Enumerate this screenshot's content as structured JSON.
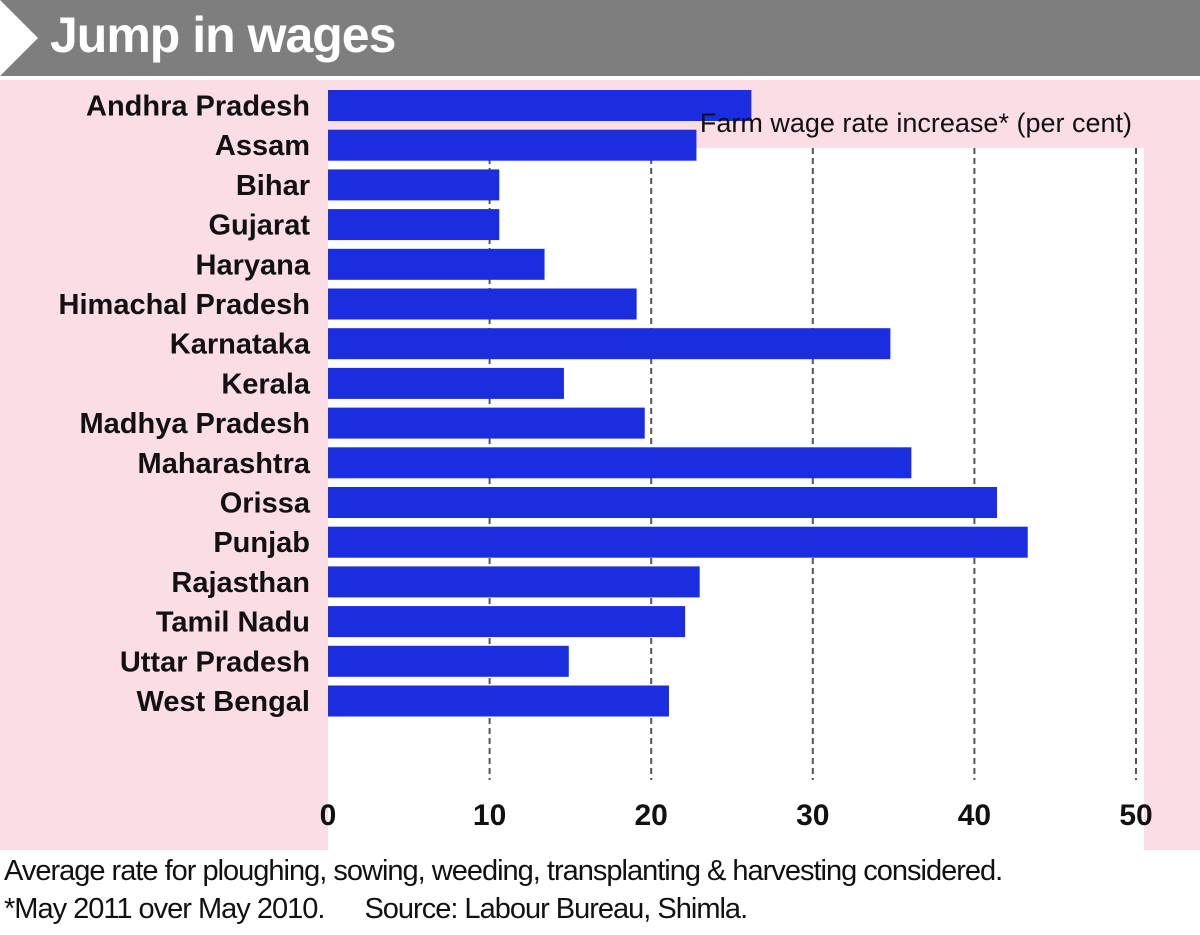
{
  "header": {
    "title": "Jump in wages"
  },
  "chart_data": {
    "type": "bar",
    "orientation": "horizontal",
    "title": "Farm wage rate increase*  (per cent)",
    "categories": [
      "Andhra Pradesh",
      "Assam",
      "Bihar",
      "Gujarat",
      "Haryana",
      "Himachal Pradesh",
      "Karnataka",
      "Kerala",
      "Madhya Pradesh",
      "Maharashtra",
      "Orissa",
      "Punjab",
      "Rajasthan",
      "Tamil Nadu",
      "Uttar Pradesh",
      "West Bengal"
    ],
    "values": [
      26.2,
      22.8,
      10.6,
      10.6,
      13.4,
      19.1,
      34.8,
      14.6,
      19.6,
      36.1,
      41.4,
      43.3,
      23.0,
      22.1,
      14.9,
      21.1
    ],
    "xlim": [
      0,
      50
    ],
    "xticks": [
      0,
      10,
      20,
      30,
      40,
      50
    ],
    "grid": "vertical dashed",
    "bar_color": "#1a2ee0",
    "background_color": "#fbdde6",
    "plot_background": "#ffffff"
  },
  "footnotes": {
    "line1": "Average rate for ploughing, sowing, weeding, transplanting & harvesting considered.",
    "line2_a": "*May 2011 over May 2010.",
    "line2_b": "Source: Labour Bureau, Shimla."
  }
}
